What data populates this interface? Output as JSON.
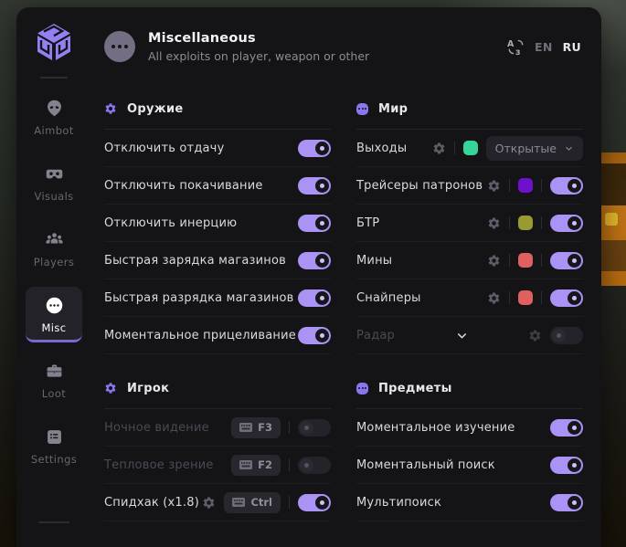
{
  "colors": {
    "accent": "#ab93f6",
    "accent_deep": "#8b76f0",
    "nav_underline": "#7b68ce",
    "swatch_green": "#35d49b",
    "swatch_violet": "#7010cf",
    "swatch_olive": "#979b31",
    "swatch_red": "#e05f5f"
  },
  "header": {
    "title": "Miscellaneous",
    "subtitle": "All exploits on player, weapon or other",
    "languages": [
      {
        "code": "EN",
        "active": false
      },
      {
        "code": "RU",
        "active": true
      }
    ]
  },
  "sidebar": {
    "items": [
      {
        "id": "aimbot",
        "label": "Aimbot",
        "icon": "alien-icon",
        "active": false
      },
      {
        "id": "visuals",
        "label": "Visuals",
        "icon": "vr-goggles-icon",
        "active": false
      },
      {
        "id": "players",
        "label": "Players",
        "icon": "players-icon",
        "active": false
      },
      {
        "id": "misc",
        "label": "Misc",
        "icon": "ellipsis-circle-icon",
        "active": true
      },
      {
        "id": "loot",
        "label": "Loot",
        "icon": "briefcase-icon",
        "active": false
      },
      {
        "id": "settings",
        "label": "Settings",
        "icon": "settings-icon",
        "active": false
      }
    ]
  },
  "sections": [
    {
      "id": "weapon",
      "title": "Оружие",
      "icon": "gear",
      "column": "left",
      "rows": [
        {
          "label": "Отключить отдачу",
          "controls": [
            {
              "type": "toggle",
              "on": true
            }
          ]
        },
        {
          "label": "Отключить покачивание",
          "controls": [
            {
              "type": "toggle",
              "on": true
            }
          ]
        },
        {
          "label": "Отключить инерцию",
          "controls": [
            {
              "type": "toggle",
              "on": true
            }
          ]
        },
        {
          "label": "Быстрая зарядка магазинов",
          "controls": [
            {
              "type": "toggle",
              "on": true
            }
          ]
        },
        {
          "label": "Быстрая разрядка магазинов",
          "controls": [
            {
              "type": "toggle",
              "on": true
            }
          ]
        },
        {
          "label": "Моментальное прицеливание",
          "controls": [
            {
              "type": "toggle",
              "on": true
            }
          ]
        }
      ]
    },
    {
      "id": "player",
      "title": "Игрок",
      "icon": "gear",
      "column": "left",
      "rows": [
        {
          "label": "Ночное видение",
          "disabled": true,
          "controls": [
            {
              "type": "key",
              "key": "F3"
            },
            {
              "type": "divider"
            },
            {
              "type": "toggle",
              "on": false
            }
          ]
        },
        {
          "label": "Тепловое зрение",
          "disabled": true,
          "controls": [
            {
              "type": "key",
              "key": "F2"
            },
            {
              "type": "divider"
            },
            {
              "type": "toggle",
              "on": false
            }
          ]
        },
        {
          "label": "Спидхак (x1.8)",
          "controls": [
            {
              "type": "gear"
            },
            {
              "type": "key",
              "key": "Ctrl"
            },
            {
              "type": "divider"
            },
            {
              "type": "toggle",
              "on": true
            }
          ]
        }
      ]
    },
    {
      "id": "world",
      "title": "Мир",
      "icon": "dots",
      "column": "right",
      "rows": [
        {
          "label": "Выходы",
          "controls": [
            {
              "type": "gear"
            },
            {
              "type": "divider"
            },
            {
              "type": "swatch",
              "color": "#35d49b"
            },
            {
              "type": "dropdown",
              "value": "Открытые"
            }
          ]
        },
        {
          "label": "Трейсеры патронов",
          "controls": [
            {
              "type": "gear"
            },
            {
              "type": "divider"
            },
            {
              "type": "swatch",
              "color": "#7010cf"
            },
            {
              "type": "divider"
            },
            {
              "type": "toggle",
              "on": true
            }
          ]
        },
        {
          "label": "БТР",
          "controls": [
            {
              "type": "gear"
            },
            {
              "type": "divider"
            },
            {
              "type": "swatch",
              "color": "#979b31"
            },
            {
              "type": "divider"
            },
            {
              "type": "toggle",
              "on": true
            }
          ]
        },
        {
          "label": "Мины",
          "controls": [
            {
              "type": "gear"
            },
            {
              "type": "divider"
            },
            {
              "type": "swatch",
              "color": "#e05f5f"
            },
            {
              "type": "divider"
            },
            {
              "type": "toggle",
              "on": true
            }
          ]
        },
        {
          "label": "Снайперы",
          "controls": [
            {
              "type": "gear"
            },
            {
              "type": "divider"
            },
            {
              "type": "swatch",
              "color": "#e05f5f"
            },
            {
              "type": "divider"
            },
            {
              "type": "toggle",
              "on": true
            }
          ]
        },
        {
          "label": "Радар",
          "disabled": true,
          "controls": [
            {
              "type": "chevron"
            },
            {
              "type": "gear"
            },
            {
              "type": "toggle",
              "on": false
            }
          ]
        }
      ]
    },
    {
      "id": "items",
      "title": "Предметы",
      "icon": "dots",
      "column": "right",
      "rows": [
        {
          "label": "Моментальное изучение",
          "controls": [
            {
              "type": "toggle",
              "on": true
            }
          ]
        },
        {
          "label": "Моментальный поиск",
          "controls": [
            {
              "type": "toggle",
              "on": true
            }
          ]
        },
        {
          "label": "Мультипоиск",
          "controls": [
            {
              "type": "toggle",
              "on": true
            }
          ]
        }
      ]
    }
  ]
}
